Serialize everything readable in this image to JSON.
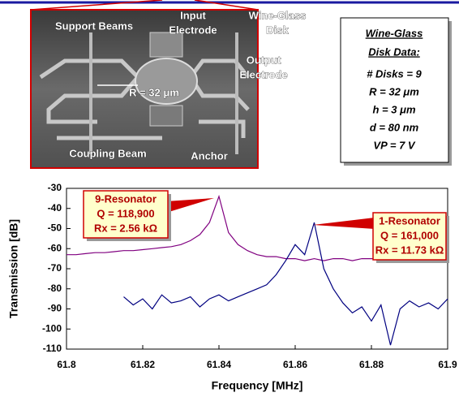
{
  "image": {
    "labels": [
      "Support Beams",
      [
        "Input",
        "Electrode"
      ],
      [
        "Wine-Glass",
        "Disk"
      ],
      [
        "Output",
        "Electrode"
      ],
      "R = 32 μm",
      "Coupling Beam",
      "Anchor"
    ]
  },
  "data_box": {
    "title": [
      "Wine-Glass",
      "Disk Data:"
    ],
    "lines": [
      "# Disks = 9",
      "R = 32 μm",
      "h = 3 μm",
      "d = 80 nm",
      "VP = 7 V"
    ]
  },
  "chart_data": {
    "type": "line",
    "x_label": "Frequency [MHz]",
    "y_label": "Transmission [dB]",
    "xlim": [
      61.8,
      61.9
    ],
    "xticks": [
      61.8,
      61.82,
      61.84,
      61.86,
      61.88,
      61.9
    ],
    "ylim": [
      -110,
      -30
    ],
    "yticks": [
      -110,
      -100,
      -90,
      -80,
      -70,
      -60,
      -50,
      -40,
      -30
    ],
    "x": [
      61.8,
      61.8025,
      61.805,
      61.8075,
      61.81,
      61.8125,
      61.815,
      61.8175,
      61.82,
      61.8225,
      61.825,
      61.8275,
      61.83,
      61.8325,
      61.835,
      61.8375,
      61.84,
      61.8425,
      61.845,
      61.8475,
      61.85,
      61.8525,
      61.855,
      61.8575,
      61.86,
      61.8625,
      61.865,
      61.8675,
      61.87,
      61.8725,
      61.875,
      61.8775,
      61.88,
      61.8825,
      61.885,
      61.8875,
      61.89,
      61.8925,
      61.895,
      61.8975,
      61.9
    ],
    "series": [
      {
        "name": "9-Resonator",
        "color": "#800080",
        "values": [
          -63,
          -63,
          -62.5,
          -62,
          -62,
          -61.5,
          -61,
          -61,
          -60.5,
          -60,
          -59.5,
          -59,
          -58,
          -56,
          -53,
          -47,
          -34,
          -52,
          -58,
          -61,
          -63,
          -64,
          -64,
          -65,
          -65,
          -66,
          -65,
          -66,
          -65,
          -65,
          -66,
          -65,
          -65,
          -65,
          -65,
          -65,
          -65,
          null,
          null,
          null,
          null
        ]
      },
      {
        "name": "1-Resonator",
        "color": "#000080",
        "values": [
          null,
          null,
          null,
          null,
          null,
          null,
          -84,
          -88,
          -85,
          -90,
          -83,
          -87,
          -86,
          -84,
          -89,
          -85,
          -83,
          -86,
          -84,
          -82,
          -80,
          -78,
          -73,
          -66,
          -58,
          -63,
          -47,
          -70,
          -80,
          -87,
          -92,
          -89,
          -96,
          -88,
          -108,
          -90,
          -86,
          -89,
          -87,
          -90,
          -85
        ]
      }
    ],
    "annotations": [
      {
        "lines": [
          "9-Resonator",
          "Q = 118,900",
          "Rx = 2.56 kΩ"
        ]
      },
      {
        "lines": [
          "1-Resonator",
          "Q = 161,000",
          "Rx = 11.73 kΩ"
        ]
      }
    ]
  }
}
